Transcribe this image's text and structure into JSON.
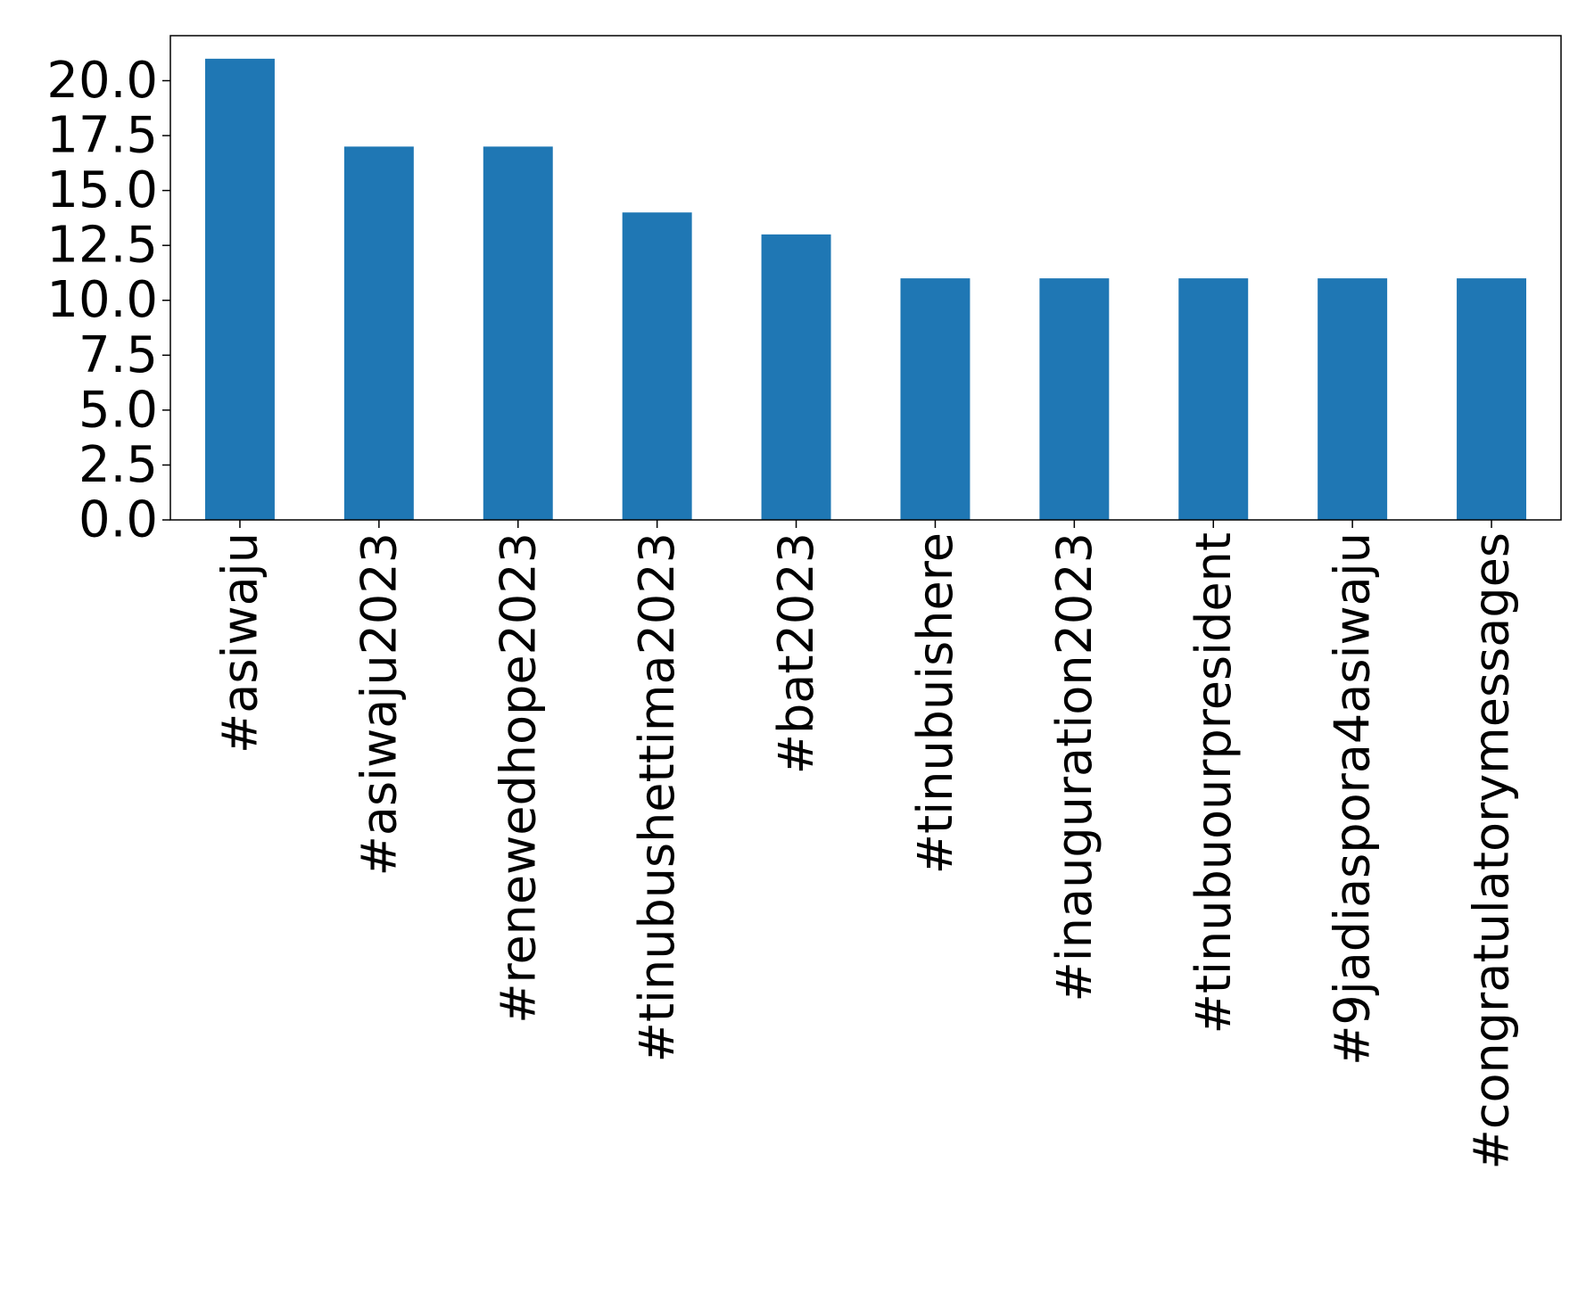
{
  "chart_data": {
    "type": "bar",
    "title": "",
    "xlabel": "",
    "ylabel": "",
    "categories": [
      "#asiwaju",
      "#asiwaju2023",
      "#renewedhope2023",
      "#tinubushettima2023",
      "#bat2023",
      "#tinubuishere",
      "#inauguration2023",
      "#tinubuourpresident",
      "#9jadiaspora4asiwaju",
      "#congratulatorymessages"
    ],
    "values": [
      21,
      17,
      17,
      14,
      13,
      11,
      11,
      11,
      11,
      11
    ],
    "ylim": [
      0,
      22.05
    ],
    "yticks": [
      0,
      2.5,
      5,
      7.5,
      10,
      12.5,
      15,
      17.5,
      20
    ],
    "ytick_labels": [
      "0.0",
      "2.5",
      "5.0",
      "7.5",
      "10.0",
      "12.5",
      "15.0",
      "17.5",
      "20.0"
    ],
    "grid": false,
    "legend": false,
    "bar_color": "#1f77b4"
  }
}
